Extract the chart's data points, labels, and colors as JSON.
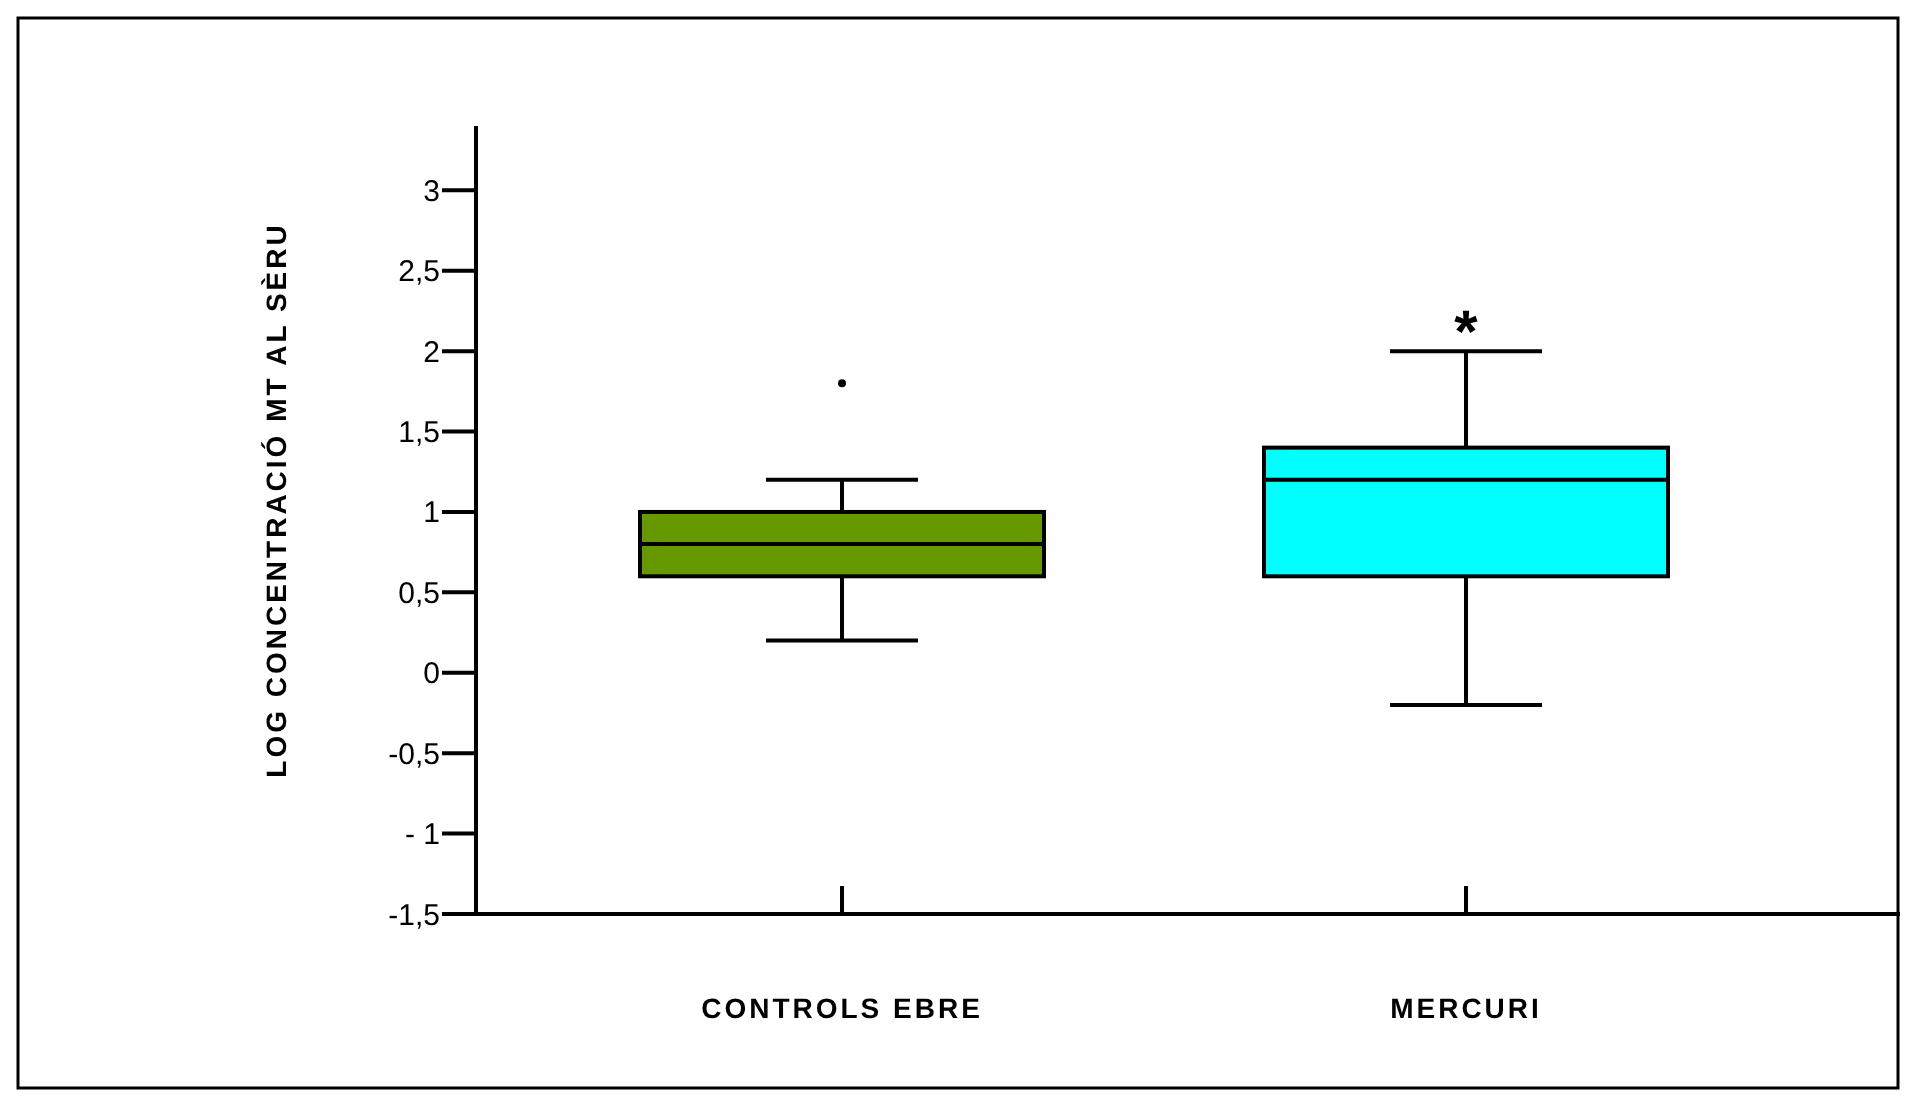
{
  "chart_data": {
    "type": "box",
    "ylabel": "LOG CONCENTRACIÓ MT  AL SÈRU",
    "categories": [
      "CONTROLS EBRE",
      "MERCURI"
    ],
    "series": [
      {
        "colors": [
          "#669900",
          "#00ffff"
        ],
        "boxes": [
          {
            "low": 0.2,
            "q1": 0.6,
            "median": 0.8,
            "q3": 1.0,
            "high": 1.2,
            "outliers": [
              1.8
            ]
          },
          {
            "low": -0.2,
            "q1": 0.6,
            "median": 1.2,
            "q3": 1.4,
            "high": 2.0
          }
        ]
      }
    ],
    "ylim": [
      -1.5,
      3.4
    ],
    "yticks": [
      {
        "value": -1.5,
        "label": "-1,5"
      },
      {
        "value": -1,
        "label": "- 1"
      },
      {
        "value": -0.5,
        "label": "-0,5"
      },
      {
        "value": 0,
        "label": "0"
      },
      {
        "value": 0.5,
        "label": "0,5"
      },
      {
        "value": 1,
        "label": "1"
      },
      {
        "value": 1.5,
        "label": "1,5"
      },
      {
        "value": 2,
        "label": "2"
      },
      {
        "value": 2.5,
        "label": "2,5"
      },
      {
        "value": 3,
        "label": "3"
      }
    ],
    "annotations": [
      "*"
    ],
    "grid": false
  }
}
